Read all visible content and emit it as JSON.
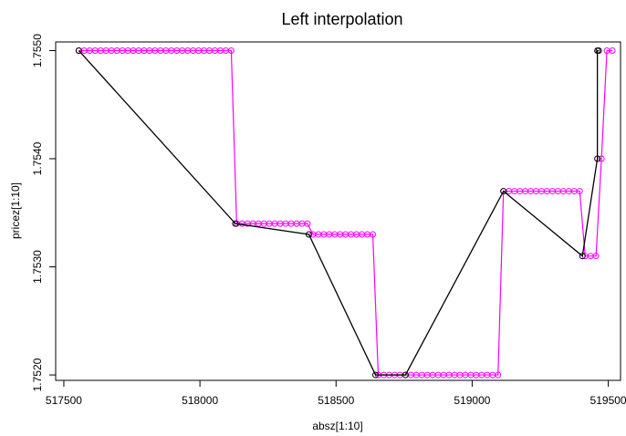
{
  "chart_data": {
    "type": "scatter",
    "title": "Left interpolation",
    "xlabel": "absz[1:10]",
    "ylabel": "pricez[1:10]",
    "xlim": [
      517470,
      519545
    ],
    "ylim": [
      1.75195,
      1.75508
    ],
    "x_ticks": [
      517500,
      518000,
      518500,
      519000,
      519500
    ],
    "x_tick_labels": [
      "517500",
      "518000",
      "518500",
      "519000",
      "519500"
    ],
    "y_ticks": [
      1.752,
      1.753,
      1.754,
      1.755
    ],
    "y_tick_labels": [
      "1.7520",
      "1.7530",
      "1.7540",
      "1.7550"
    ],
    "grid": false,
    "original_series": {
      "color": "#000000",
      "x": [
        517555,
        518130,
        518400,
        518645,
        518755,
        519115,
        519405,
        519460,
        519460,
        519465
      ],
      "y": [
        1.755,
        1.7534,
        1.7533,
        1.752,
        1.752,
        1.7537,
        1.7531,
        1.754,
        1.755,
        1.755
      ]
    },
    "interpolated_series": {
      "color": "#ff00ff",
      "x": [
        517555,
        517575,
        517595,
        517615,
        517635,
        517655,
        517675,
        517695,
        517715,
        517735,
        517755,
        517775,
        517795,
        517815,
        517835,
        517855,
        517875,
        517895,
        517915,
        517935,
        517955,
        517975,
        517995,
        518015,
        518035,
        518055,
        518075,
        518095,
        518115,
        518135,
        518155,
        518175,
        518195,
        518215,
        518235,
        518255,
        518275,
        518295,
        518315,
        518335,
        518355,
        518375,
        518395,
        518415,
        518435,
        518455,
        518475,
        518495,
        518515,
        518535,
        518555,
        518575,
        518595,
        518615,
        518635,
        518655,
        518675,
        518695,
        518715,
        518735,
        518755,
        518775,
        518795,
        518815,
        518835,
        518855,
        518875,
        518895,
        518915,
        518935,
        518955,
        518975,
        518995,
        519015,
        519035,
        519055,
        519075,
        519095,
        519115,
        519135,
        519155,
        519175,
        519195,
        519215,
        519235,
        519255,
        519275,
        519295,
        519315,
        519335,
        519355,
        519375,
        519395,
        519415,
        519435,
        519455,
        519475,
        519495,
        519515
      ],
      "y": [
        1.755,
        1.755,
        1.755,
        1.755,
        1.755,
        1.755,
        1.755,
        1.755,
        1.755,
        1.755,
        1.755,
        1.755,
        1.755,
        1.755,
        1.755,
        1.755,
        1.755,
        1.755,
        1.755,
        1.755,
        1.755,
        1.755,
        1.755,
        1.755,
        1.755,
        1.755,
        1.755,
        1.755,
        1.755,
        1.7534,
        1.7534,
        1.7534,
        1.7534,
        1.7534,
        1.7534,
        1.7534,
        1.7534,
        1.7534,
        1.7534,
        1.7534,
        1.7534,
        1.7534,
        1.7534,
        1.7533,
        1.7533,
        1.7533,
        1.7533,
        1.7533,
        1.7533,
        1.7533,
        1.7533,
        1.7533,
        1.7533,
        1.7533,
        1.7533,
        1.752,
        1.752,
        1.752,
        1.752,
        1.752,
        1.752,
        1.752,
        1.752,
        1.752,
        1.752,
        1.752,
        1.752,
        1.752,
        1.752,
        1.752,
        1.752,
        1.752,
        1.752,
        1.752,
        1.752,
        1.752,
        1.752,
        1.752,
        1.7537,
        1.7537,
        1.7537,
        1.7537,
        1.7537,
        1.7537,
        1.7537,
        1.7537,
        1.7537,
        1.7537,
        1.7537,
        1.7537,
        1.7537,
        1.7537,
        1.7537,
        1.7531,
        1.7531,
        1.7531,
        1.754,
        1.755,
        1.755
      ]
    }
  }
}
